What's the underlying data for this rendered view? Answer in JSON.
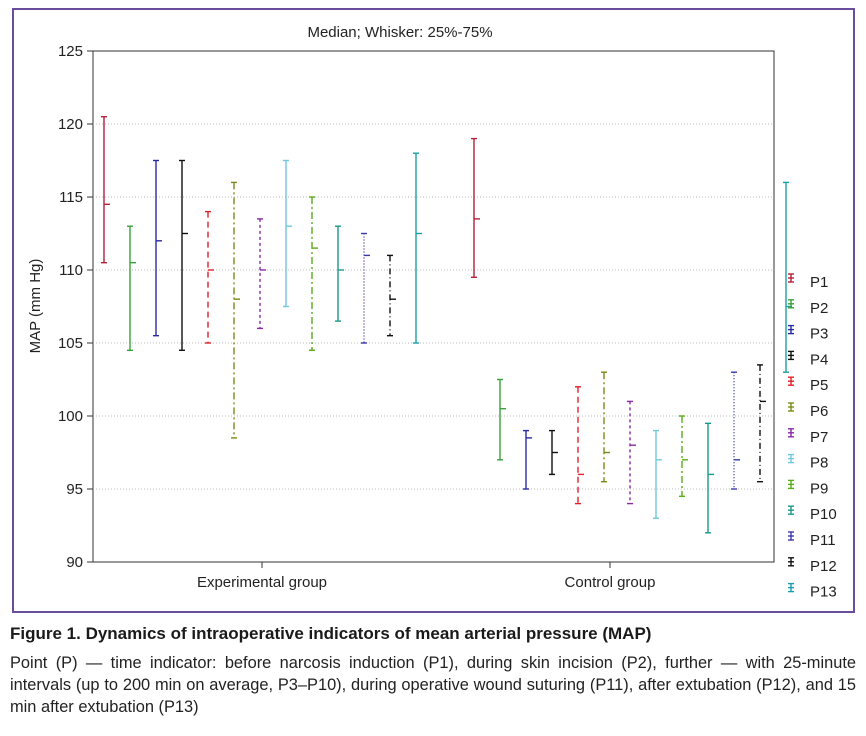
{
  "chart_data": {
    "type": "box",
    "title": "Median; Whisker: 25%-75%",
    "xlabel": "",
    "ylabel": "MAP (mm Hg)",
    "ylim": [
      90,
      125
    ],
    "yticks": [
      90,
      95,
      100,
      105,
      110,
      115,
      120,
      125
    ],
    "grid": true,
    "legend_position": "right",
    "categories": [
      "Experimental group",
      "Control group"
    ],
    "series": [
      {
        "name": "P1",
        "color": "#b5203a",
        "dash": "solid",
        "values": [
          {
            "q1": 110.5,
            "median": 114.5,
            "q3": 120.5
          },
          {
            "q1": 109.5,
            "median": 113.5,
            "q3": 119.0
          }
        ]
      },
      {
        "name": "P2",
        "color": "#3aa13a",
        "dash": "solid",
        "values": [
          {
            "q1": 104.5,
            "median": 110.5,
            "q3": 113.0
          },
          {
            "q1": 97.0,
            "median": 100.5,
            "q3": 102.5
          }
        ]
      },
      {
        "name": "P3",
        "color": "#2a2aa6",
        "dash": "solid",
        "values": [
          {
            "q1": 105.5,
            "median": 112.0,
            "q3": 117.5
          },
          {
            "q1": 95.0,
            "median": 98.5,
            "q3": 99.0
          }
        ]
      },
      {
        "name": "P4",
        "color": "#111111",
        "dash": "solid",
        "values": [
          {
            "q1": 104.5,
            "median": 112.5,
            "q3": 117.5
          },
          {
            "q1": 96.0,
            "median": 97.5,
            "q3": 99.0
          }
        ]
      },
      {
        "name": "P5",
        "color": "#e0202a",
        "dash": "6,4",
        "values": [
          {
            "q1": 105.0,
            "median": 110.0,
            "q3": 114.0
          },
          {
            "q1": 94.0,
            "median": 96.0,
            "q3": 102.0
          }
        ]
      },
      {
        "name": "P6",
        "color": "#7a8a1a",
        "dash": "7,3,2,3",
        "values": [
          {
            "q1": 98.5,
            "median": 108.0,
            "q3": 116.0
          },
          {
            "q1": 95.5,
            "median": 97.5,
            "q3": 103.0
          }
        ]
      },
      {
        "name": "P7",
        "color": "#8a2aa6",
        "dash": "3,3",
        "values": [
          {
            "q1": 106.0,
            "median": 110.0,
            "q3": 113.5
          },
          {
            "q1": 94.0,
            "median": 98.0,
            "q3": 101.0
          }
        ]
      },
      {
        "name": "P8",
        "color": "#6ec8e0",
        "dash": "solid",
        "values": [
          {
            "q1": 107.5,
            "median": 113.0,
            "q3": 117.5
          },
          {
            "q1": 93.0,
            "median": 97.0,
            "q3": 99.0
          }
        ]
      },
      {
        "name": "P9",
        "color": "#5aaa1a",
        "dash": "7,3,2,3",
        "values": [
          {
            "q1": 104.5,
            "median": 111.5,
            "q3": 115.0
          },
          {
            "q1": 94.5,
            "median": 97.0,
            "q3": 100.0
          }
        ]
      },
      {
        "name": "P10",
        "color": "#1a9a8a",
        "dash": "solid",
        "values": [
          {
            "q1": 106.5,
            "median": 110.0,
            "q3": 113.0
          },
          {
            "q1": 92.0,
            "median": 96.0,
            "q3": 99.5
          }
        ]
      },
      {
        "name": "P11",
        "color": "#3a3aaa",
        "dash": "1,2",
        "values": [
          {
            "q1": 105.0,
            "median": 111.0,
            "q3": 112.5
          },
          {
            "q1": 95.0,
            "median": 97.0,
            "q3": 103.0
          }
        ]
      },
      {
        "name": "P12",
        "color": "#111111",
        "dash": "6,3,1,3",
        "values": [
          {
            "q1": 105.5,
            "median": 108.0,
            "q3": 111.0
          },
          {
            "q1": 95.5,
            "median": 101.0,
            "q3": 103.5
          }
        ]
      },
      {
        "name": "P13",
        "color": "#1aa0a8",
        "dash": "solid",
        "values": [
          {
            "q1": 105.0,
            "median": 112.5,
            "q3": 118.0
          },
          {
            "q1": 103.0,
            "median": 107.5,
            "q3": 116.0
          }
        ]
      }
    ]
  },
  "caption": {
    "title": "Figure 1. Dynamics of intraoperative indicators of mean arterial pressure (MAP)",
    "body": "Point (P) — time indicator: before narcosis induction (P1), during skin incision (P2), further — with 25-minute intervals (up to 200 min on average, P3–P10), during operative wound suturing (P11), after extubation (P12), and 15 min after extubation (P13)"
  },
  "colors": {
    "frame": "#6a4d9c",
    "grid": "#b8b8b8"
  }
}
